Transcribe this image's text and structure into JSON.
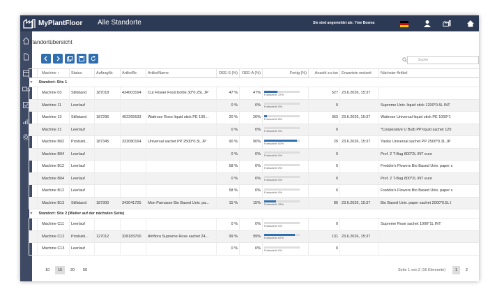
{
  "header": {
    "brand": "MyPlantFloor",
    "title": "Alle Standorte",
    "signed_in": "Sie sind angemeldet als: Yme Bosma"
  },
  "page": {
    "heading": "Standortübersicht",
    "search_placeholder": "Suche"
  },
  "toolbar": {
    "icons": [
      "chevron-left-icon",
      "chevron-right-icon",
      "copy-icon",
      "save-icon",
      "refresh-icon"
    ]
  },
  "sidebar": {
    "icons": [
      "home-icon",
      "document-icon",
      "calendar-icon",
      "truck-icon",
      "checklist-icon",
      "bar-chart-icon",
      "settings-icon"
    ]
  },
  "colors": {
    "topbar": "#2c3a56",
    "sidebar": "#3e4a63",
    "accent": "#2f6fb0"
  },
  "columns": [
    "Machine",
    "Status",
    "AuftragNr.",
    "ArtikelNr.",
    "ArtikelName",
    "OEE-S (%)",
    "OEE-A (%)",
    "Fertig (%)",
    "Anzahl zu tun",
    "Erwartete endzeit",
    "Nächster Artikel"
  ],
  "groups": [
    {
      "label": "Standort: Site 1",
      "rows": [
        {
          "machine": "Machine 03",
          "status": "Stillstand",
          "order": "187018",
          "art": "434003164",
          "name": "Cut Flower Food bottle 30*0.25L JP",
          "oees": "47 %",
          "oeea": "47%",
          "progress_label": "Fortschritt: 37%",
          "progress": 0.37,
          "todo": "527",
          "end": "23.6.2026, 15:37",
          "next": ""
        },
        {
          "machine": "Machine 11",
          "status": "Leerlauf",
          "order": "",
          "art": "",
          "name": "",
          "oees": "0 %",
          "oeea": "0%",
          "progress_label": "Fortschritt: 0%",
          "progress": 0,
          "todo": "0",
          "end": "",
          "next": "Supreme Univ. liquid stick 1200*0.5L INT"
        },
        {
          "machine": "Machine 13",
          "status": "Stillstand",
          "order": "187296",
          "art": "452265533",
          "name": "Waitrose Rose liquid stick PE 100...",
          "oees": "20 %",
          "oeea": "20%",
          "progress_label": "Fortschritt: 8%",
          "progress": 0.08,
          "todo": "363",
          "end": "23.6.2026, 15:37",
          "next": "Waitrose Universal liquid stick PE 1000*1"
        },
        {
          "machine": "Machine 21",
          "status": "Leerlauf",
          "order": "",
          "art": "",
          "name": "",
          "oees": "0 %",
          "oeea": "0%",
          "progress_label": "Fortschritt: 0%",
          "progress": 0,
          "todo": "0",
          "end": "",
          "next": "*Cooperative U Bulb PP liquid sachet 120"
        },
        {
          "machine": "Machine B02",
          "status": "Produkti...",
          "order": "187345",
          "art": "332080164",
          "name": "Universal sachet PP 2500*0.3L JP",
          "oees": "90 %",
          "oeea": "90%",
          "progress_label": "Fortschritt: 92%",
          "progress": 0.92,
          "todo": "29",
          "end": "23.6.2026, 15:37",
          "next": "Yaoko Universal sachet PP 2500*0.3L JP"
        },
        {
          "machine": "Machine B04",
          "status": "Leerlauf",
          "order": "",
          "art": "",
          "name": "",
          "oees": "0 %",
          "oeea": "0%",
          "progress_label": "Fortschritt: 0%",
          "progress": 0,
          "todo": "0",
          "end": "",
          "next": "Prof. 2 T-Bag 800*2L INT euro"
        },
        {
          "machine": "Machine B12",
          "status": "Leerlauf",
          "order": "",
          "art": "",
          "name": "",
          "oees": "58 %",
          "oeea": "0%",
          "progress_label": "Fortschritt: 0%",
          "progress": 0,
          "todo": "0",
          "end": "",
          "next": "Freddie's Flowers Bio Based Univ. paper s"
        },
        {
          "machine": "Machine B04",
          "status": "Leerlauf",
          "order": "",
          "art": "",
          "name": "",
          "oees": "0 %",
          "oeea": "0%",
          "progress_label": "Fortschritt: 0%",
          "progress": 0,
          "todo": "0",
          "end": "",
          "next": "Prof. 2 T-Bag 800*2L INT euro"
        },
        {
          "machine": "Machine B12",
          "status": "Leerlauf",
          "order": "",
          "art": "",
          "name": "",
          "oees": "58 %",
          "oeea": "0%",
          "progress_label": "Fortschritt: 0%",
          "progress": 0,
          "todo": "0",
          "end": "",
          "next": "Freddie's Flowers Bio Based Univ. paper s"
        },
        {
          "machine": "Machine B13",
          "status": "Stillstand",
          "order": "187300",
          "art": "343041725",
          "name": "Mon Parnasse Bio Based Univ. pa...",
          "oees": "15 %",
          "oeea": "15%",
          "progress_label": "Fortschritt: 33%",
          "progress": 0.33,
          "todo": "80",
          "end": "23.6.2026, 15:37",
          "next": "Bio Based Univ. paper sachet 2000*0.5L I"
        }
      ]
    },
    {
      "label": "Standort: Site 2 (Weiter auf der nächsten Seite)",
      "rows": [
        {
          "machine": "Machine C11",
          "status": "Leerlauf",
          "order": "",
          "art": "",
          "name": "",
          "oees": "0 %",
          "oeea": "0%",
          "progress_label": "Fortschritt: 0%",
          "progress": 0,
          "todo": "0",
          "end": "",
          "next": "Supreme Rose sachet 1000*1L INT"
        },
        {
          "machine": "Machine C12",
          "status": "Produkti...",
          "order": "127012",
          "art": "328183700",
          "name": "Afriflora Supreme Rose sachet 24...",
          "oees": "99 %",
          "oeea": "99%",
          "progress_label": "Fortschritt: 87%",
          "progress": 0.87,
          "todo": "131",
          "end": "23.6.2026, 15:37",
          "next": ""
        },
        {
          "machine": "Machine C13",
          "status": "Leerlauf",
          "order": "",
          "art": "",
          "name": "",
          "oees": "0 %",
          "oeea": "0%",
          "progress_label": "Fortschritt: 0%",
          "progress": 0,
          "todo": "0",
          "end": "",
          "next": ""
        }
      ]
    }
  ],
  "pagination": {
    "sizes": [
      "10",
      "15",
      "20",
      "50"
    ],
    "selected_size": "15",
    "info": "Seite 1 von 2 (16 Elemente)",
    "pages": [
      "1",
      "2"
    ],
    "current_page": "1"
  }
}
